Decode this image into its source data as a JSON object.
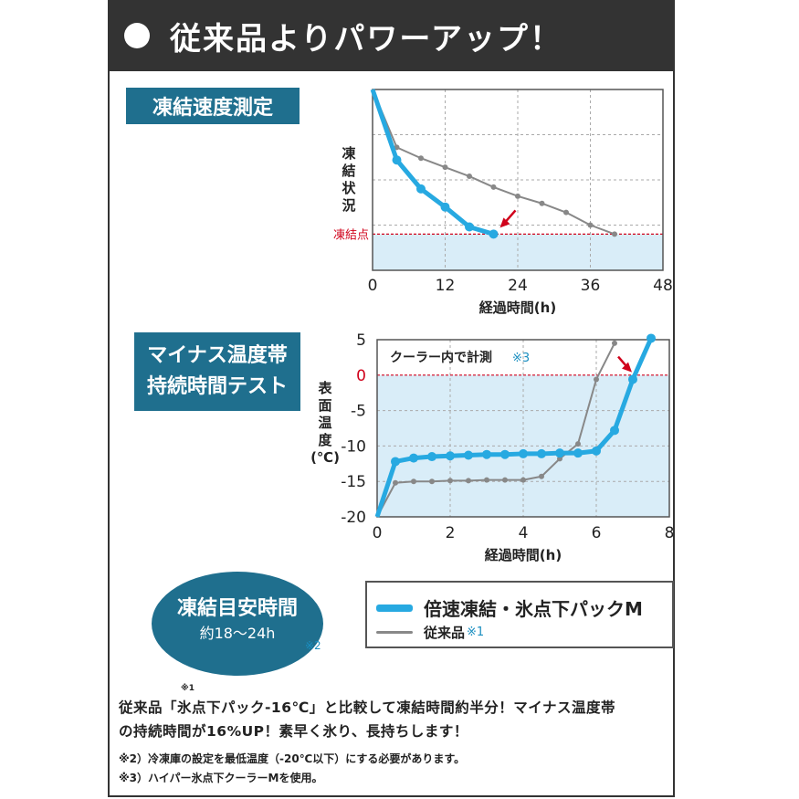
{
  "header": {
    "title": "従来品よりパワーアップ！"
  },
  "section1": {
    "label": "凍結速度測定"
  },
  "section2": {
    "label_line1": "マイナス温度帯",
    "label_line2": "持続時間テスト"
  },
  "ellipse": {
    "line1": "凍結目安時間",
    "line2": "約18〜24h",
    "note": "※2"
  },
  "legend": {
    "item1": "倍速凍結・氷点下パックM",
    "item2": "従来品",
    "item2_note": "※1"
  },
  "colors": {
    "new": "#27a9e1",
    "old": "#888888",
    "freeze_line": "#d0021b",
    "fill": "#d9edf8",
    "dark": "#333333",
    "navy_box": "#1f6f8e"
  },
  "footer": {
    "sup": "※1",
    "line1": "従来品「氷点下パック-16℃」と比較して凍結時間約半分！マイナス温度帯",
    "line2": "の持続時間が16%UP！素早く氷り、長持ちします！",
    "note2": "※2）冷凍庫の設定を最低温度（-20℃以下）にする必要があります。",
    "note3": "※3）ハイパー氷点下クーラーMを使用。"
  },
  "chart_data": [
    {
      "type": "line",
      "title": "凍結速度測定",
      "xlabel": "経過時間(h)",
      "ylabel": "凍結状況",
      "xlim": [
        0,
        48
      ],
      "x_ticks": [
        0,
        12,
        24,
        36,
        48
      ],
      "tick_labels": [
        "0",
        "12",
        "24",
        "36",
        "48"
      ],
      "ylim": [
        0,
        100
      ],
      "y_ticks_shown": false,
      "freeze_point_label": "凍結点",
      "freeze_point_value": 20,
      "grid": true,
      "series": [
        {
          "name": "倍速凍結・氷点下パックM",
          "x": [
            0,
            4,
            8,
            12,
            16,
            20
          ],
          "y": [
            100,
            61,
            45,
            35,
            24,
            20
          ]
        },
        {
          "name": "従来品",
          "x": [
            0,
            4,
            8,
            12,
            16,
            20,
            24,
            28,
            32,
            36,
            40
          ],
          "y": [
            100,
            68,
            62,
            57,
            52,
            46,
            41,
            37,
            32,
            25,
            20
          ]
        }
      ]
    },
    {
      "type": "line",
      "title": "マイナス温度帯持続時間テスト",
      "annotation": "クーラー内で計測",
      "annotation_note": "※3",
      "xlabel": "経過時間(h)",
      "ylabel": "表面温度(℃)",
      "xlim": [
        0,
        8
      ],
      "x_ticks": [
        0,
        2,
        4,
        6,
        8
      ],
      "x_tick_labels": [
        "0",
        "2",
        "4",
        "6",
        "8"
      ],
      "ylim": [
        -20,
        5
      ],
      "y_ticks": [
        5,
        0,
        -5,
        -10,
        -15,
        -20
      ],
      "y_tick_labels": [
        "5",
        "0",
        "-5",
        "-10",
        "-15",
        "-20"
      ],
      "zero_label_color": "#d0021b",
      "grid": true,
      "series": [
        {
          "name": "倍速凍結・氷点下パックM",
          "x": [
            0,
            0.5,
            1,
            1.5,
            2,
            2.5,
            3,
            3.5,
            4,
            4.5,
            5,
            5.5,
            6,
            6.5,
            7,
            7.5
          ],
          "y": [
            -20,
            -12.2,
            -11.7,
            -11.5,
            -11.4,
            -11.3,
            -11.2,
            -11.2,
            -11.1,
            -11.1,
            -11.0,
            -11.0,
            -10.7,
            -7.8,
            -0.6,
            5.2
          ]
        },
        {
          "name": "従来品",
          "x": [
            0,
            0.5,
            1,
            1.5,
            2,
            2.5,
            3,
            3.5,
            4,
            4.5,
            5,
            5.5,
            6,
            6.5
          ],
          "y": [
            -20,
            -15.2,
            -15.0,
            -15.0,
            -14.9,
            -14.9,
            -14.8,
            -14.8,
            -14.8,
            -14.3,
            -11.8,
            -9.7,
            -0.6,
            4.5
          ]
        }
      ]
    }
  ]
}
